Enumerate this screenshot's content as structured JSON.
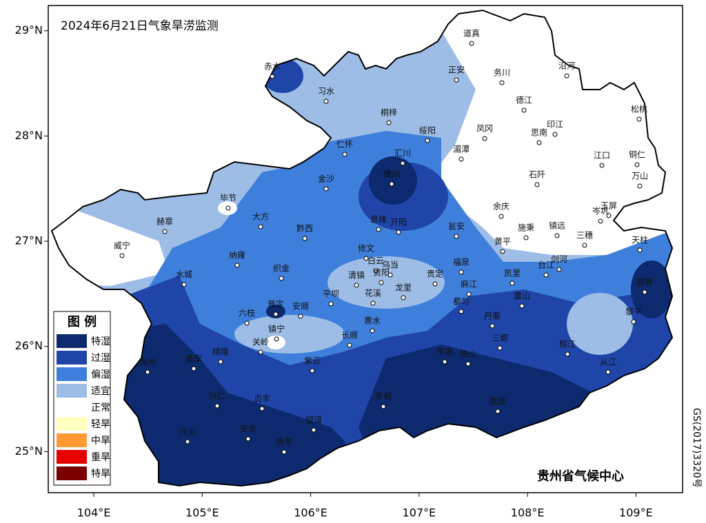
{
  "map": {
    "title": "2024年6月21日气象旱涝监测",
    "xlim": [
      103.58,
      109.43
    ],
    "ylim": [
      24.61,
      29.24
    ],
    "xticks": [
      {
        "value": 104,
        "label": "104°E"
      },
      {
        "value": 105,
        "label": "105°E"
      },
      {
        "value": 106,
        "label": "106°E"
      },
      {
        "value": 107,
        "label": "107°E"
      },
      {
        "value": 108,
        "label": "108°E"
      },
      {
        "value": 109,
        "label": "109°E"
      }
    ],
    "yticks": [
      {
        "value": 25,
        "label": "25°N"
      },
      {
        "value": 26,
        "label": "26°N"
      },
      {
        "value": 27,
        "label": "27°N"
      },
      {
        "value": 28,
        "label": "28°N"
      },
      {
        "value": 29,
        "label": "29°N"
      }
    ],
    "legend": {
      "title": "图 例",
      "items": [
        {
          "label": "特湿",
          "color": "#0d2a6e"
        },
        {
          "label": "过湿",
          "color": "#1f45a8"
        },
        {
          "label": "偏湿",
          "color": "#3f7fdc"
        },
        {
          "label": "适宜",
          "color": "#9dbde6"
        },
        {
          "label": "正常",
          "color": "#ffffff"
        },
        {
          "label": "轻旱",
          "color": "#ffffc0"
        },
        {
          "label": "中旱",
          "color": "#ff9933"
        },
        {
          "label": "重旱",
          "color": "#e60000"
        },
        {
          "label": "特旱",
          "color": "#7a0000"
        }
      ]
    },
    "cities": [
      "道真",
      "务川",
      "沿河",
      "赤水",
      "习水",
      "正安",
      "德江",
      "松桃",
      "桐梓",
      "绥阳",
      "凤冈",
      "思南",
      "印江",
      "仁怀",
      "汇川",
      "湄潭",
      "江口",
      "铜仁",
      "金沙",
      "播州",
      "石阡",
      "万山",
      "毕节",
      "余庆",
      "岑巩",
      "玉屏",
      "赫章",
      "大方",
      "黔西",
      "息烽",
      "开阳",
      "瓮安",
      "施秉",
      "镇远",
      "三穗",
      "天柱",
      "威宁",
      "黄平",
      "修文",
      "纳雍",
      "织金",
      "白云",
      "乌当",
      "贵阳",
      "清镇",
      "福泉",
      "凯里",
      "台江",
      "剑河",
      "水城",
      "贵定",
      "龙里",
      "花溪",
      "平坝",
      "麻江",
      "雷山",
      "锦屏",
      "普定",
      "安顺",
      "六枝",
      "都匀",
      "丹寨",
      "黎平",
      "惠水",
      "镇宁",
      "长顺",
      "三都",
      "关岭",
      "平塘",
      "独山",
      "榕江",
      "紫云",
      "晴隆",
      "普安",
      "盘州",
      "从江",
      "兴仁",
      "贞丰",
      "罗甸",
      "荔波",
      "望谟",
      "兴义",
      "安龙",
      "册亨"
    ],
    "credit": "贵州省气候中心",
    "approval": "GS(2017)3320号"
  }
}
